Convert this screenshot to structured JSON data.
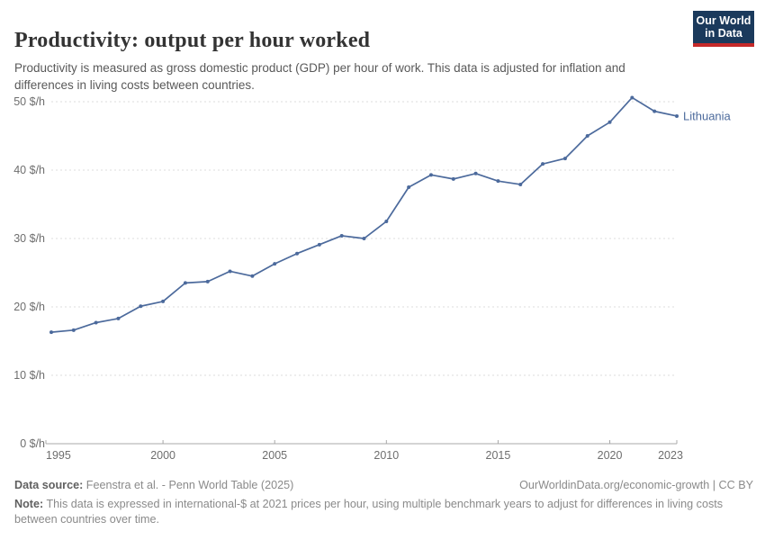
{
  "header": {
    "title": "Productivity: output per hour worked",
    "subtitle": "Productivity is measured as gross domestic product (GDP) per hour of work. This data is adjusted for inflation and differences in living costs between countries."
  },
  "logo": {
    "line1": "Our World",
    "line2": "in Data",
    "bg_color": "#1b3a5c",
    "stripe_color": "#c52929"
  },
  "chart_data": {
    "type": "line",
    "title": "Productivity: output per hour worked",
    "x": [
      1995,
      1996,
      1997,
      1998,
      1999,
      2000,
      2001,
      2002,
      2003,
      2004,
      2005,
      2006,
      2007,
      2008,
      2009,
      2010,
      2011,
      2012,
      2013,
      2014,
      2015,
      2016,
      2017,
      2018,
      2019,
      2020,
      2021,
      2022,
      2023
    ],
    "series": [
      {
        "name": "Lithuania",
        "color": "#4c6a9c",
        "values": [
          16.3,
          16.6,
          17.7,
          18.3,
          20.1,
          20.8,
          23.5,
          23.7,
          25.2,
          24.5,
          26.3,
          27.8,
          29.1,
          30.4,
          30.0,
          32.5,
          37.5,
          39.3,
          38.7,
          39.5,
          38.4,
          37.9,
          40.9,
          41.7,
          45.0,
          47.0,
          50.6,
          48.6,
          47.9
        ]
      }
    ],
    "xlabel": "",
    "ylabel": "$/h",
    "ylim": [
      0,
      50
    ],
    "xlim": [
      1995,
      2023
    ],
    "y_ticks": [
      {
        "value": 0,
        "label": "0 $/h"
      },
      {
        "value": 10,
        "label": "10 $/h"
      },
      {
        "value": 20,
        "label": "20 $/h"
      },
      {
        "value": 30,
        "label": "30 $/h"
      },
      {
        "value": 40,
        "label": "40 $/h"
      },
      {
        "value": 50,
        "label": "50 $/h"
      }
    ],
    "x_ticks": [
      1995,
      2000,
      2005,
      2010,
      2015,
      2020,
      2023
    ],
    "grid": "horizontal-dashed",
    "legend_position": "end-of-line-label",
    "colors": {
      "gridline": "#dddddd",
      "axis": "#a8a8a8",
      "tick_label": "#6e6e6e"
    }
  },
  "footer": {
    "datasource_label": "Data source:",
    "datasource_text": " Feenstra et al. - Penn World Table (2025)",
    "link_text": "OurWorldinData.org/economic-growth | CC BY",
    "note_label": "Note:",
    "note_text": " This data is expressed in international-$ at 2021 prices per hour, using multiple benchmark years to adjust for differences in living costs between countries over time."
  }
}
